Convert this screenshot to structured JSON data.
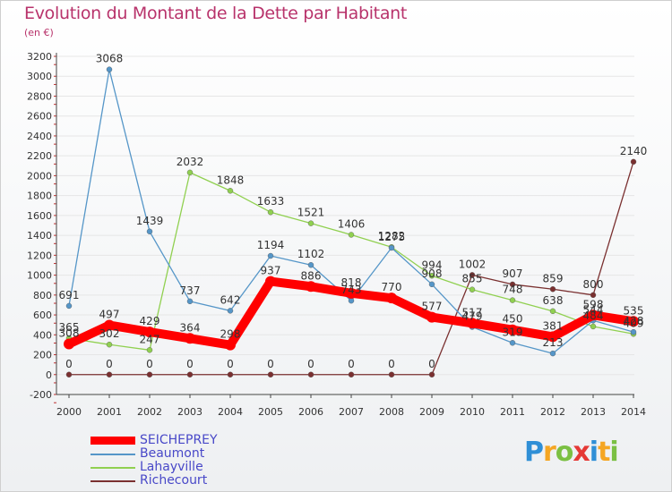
{
  "title": "Evolution du Montant de la Dette par Habitant",
  "subtitle": "(en €)",
  "logo": {
    "letters": [
      "P",
      "r",
      "o",
      "x",
      "i",
      "t",
      "i"
    ],
    "colors": [
      "#2f8fd6",
      "#f5a623",
      "#7bc043",
      "#e53935",
      "#2f8fd6",
      "#f5a623",
      "#7bc043"
    ]
  },
  "chart_data": {
    "type": "line",
    "x": [
      2000,
      2001,
      2002,
      2003,
      2004,
      2005,
      2006,
      2007,
      2008,
      2009,
      2010,
      2011,
      2012,
      2013,
      2014
    ],
    "ylim": [
      -200,
      3200
    ],
    "yticks": [
      -200,
      0,
      200,
      400,
      600,
      800,
      1000,
      1200,
      1400,
      1600,
      1800,
      2000,
      2200,
      2400,
      2600,
      2800,
      3000,
      3200
    ],
    "series": [
      {
        "name": "SEICHEPREY",
        "color": "#ff0000",
        "values": [
          308,
          497,
          429,
          364,
          298,
          937,
          886,
          818,
          770,
          577,
          517,
          450,
          381,
          598,
          535
        ],
        "labels": [
          "308",
          "497",
          "429",
          "364",
          "298",
          "937",
          "886",
          "818",
          "770",
          "577",
          "517",
          "450",
          "381",
          "598",
          "535"
        ]
      },
      {
        "name": "Beaumont",
        "color": "#5596c8",
        "values": [
          691,
          3068,
          1439,
          737,
          642,
          1194,
          1102,
          743,
          1275,
          908,
          479,
          319,
          213,
          544,
          428
        ],
        "labels": [
          "691",
          "3068",
          "1439",
          "737",
          "642",
          "1194",
          "1102",
          "743",
          "1275",
          "908",
          "479",
          "319",
          "213",
          "544",
          "428"
        ]
      },
      {
        "name": "Lahayville",
        "color": "#90d050",
        "values": [
          365,
          302,
          247,
          2032,
          1848,
          1633,
          1521,
          1406,
          1282,
          994,
          855,
          748,
          638,
          484,
          409
        ],
        "labels": [
          "365",
          "302",
          "247",
          "2032",
          "1848",
          "1633",
          "1521",
          "1406",
          "1282",
          "994",
          "855",
          "748",
          "638",
          "484",
          "409"
        ]
      },
      {
        "name": "Richecourt",
        "color": "#7a3030",
        "values": [
          0,
          0,
          0,
          0,
          0,
          0,
          0,
          0,
          0,
          0,
          1002,
          907,
          859,
          800,
          2140
        ],
        "labels": [
          "0",
          "0",
          "0",
          "0",
          "0",
          "0",
          "0",
          "0",
          "0",
          "0",
          "1002",
          "907",
          "859",
          "800",
          "2140"
        ]
      }
    ]
  }
}
